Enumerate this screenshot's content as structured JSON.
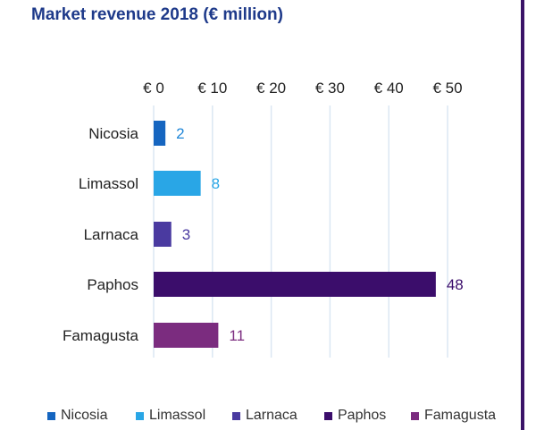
{
  "chart_data": {
    "type": "bar",
    "orientation": "horizontal",
    "title": "Market revenue 2018 (€ million)",
    "categories": [
      "Nicosia",
      "Limassol",
      "Larnaca",
      "Paphos",
      "Famagusta"
    ],
    "values": [
      2,
      8,
      3,
      48,
      11
    ],
    "data_labels": [
      "2",
      "8",
      "3",
      "48",
      "11"
    ],
    "colors": [
      "#1565c0",
      "#29a6e6",
      "#4a3aa0",
      "#3b0d6b",
      "#7b2c7f"
    ],
    "label_colors": [
      "#1f86d8",
      "#29a6e6",
      "#4a3aa0",
      "#3b0d6b",
      "#7b2c7f"
    ],
    "xlim": [
      0,
      50
    ],
    "xticks": [
      0,
      10,
      20,
      30,
      40,
      50
    ],
    "xtick_labels": [
      "€ 0",
      "€ 10",
      "€ 20",
      "€ 30",
      "€ 40",
      "€ 50"
    ],
    "xlabel": "",
    "ylabel": "",
    "grid": true,
    "legend": [
      "Nicosia",
      "Limassol",
      "Larnaca",
      "Paphos",
      "Famagusta"
    ],
    "legend_placement": "bottom"
  },
  "accent_rule_color": "#3b1368"
}
